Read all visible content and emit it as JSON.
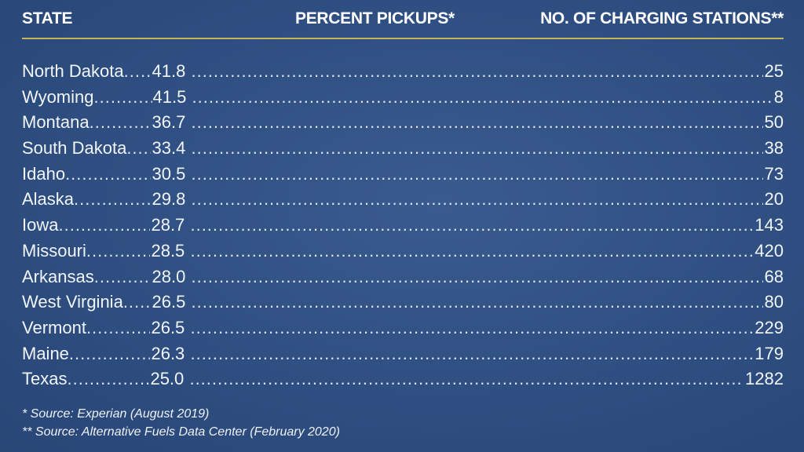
{
  "header": {
    "state": "STATE",
    "percent_pickups": "PERCENT PICKUPS*",
    "charging_stations": "NO. OF CHARGING STATIONS**"
  },
  "rows": [
    {
      "state": "North Dakota",
      "percent": "41.8",
      "stations": "25"
    },
    {
      "state": "Wyoming",
      "percent": "41.5",
      "stations": "8"
    },
    {
      "state": "Montana",
      "percent": "36.7",
      "stations": "50"
    },
    {
      "state": "South Dakota",
      "percent": "33.4",
      "stations": "38"
    },
    {
      "state": "Idaho",
      "percent": "30.5",
      "stations": "73"
    },
    {
      "state": "Alaska",
      "percent": "29.8",
      "stations": "20"
    },
    {
      "state": "Iowa",
      "percent": "28.7",
      "stations": "143"
    },
    {
      "state": "Missouri",
      "percent": "28.5",
      "stations": "420"
    },
    {
      "state": "Arkansas",
      "percent": "28.0",
      "stations": "68"
    },
    {
      "state": "West Virginia",
      "percent": "26.5",
      "stations": "80"
    },
    {
      "state": "Vermont",
      "percent": "26.5",
      "stations": "229"
    },
    {
      "state": "Maine",
      "percent": "26.3",
      "stations": "179"
    },
    {
      "state": "Texas",
      "percent": "25.0",
      "stations": "1282"
    }
  ],
  "footnotes": {
    "note1": "*  Source: Experian (August 2019)",
    "note2": "** Source: Alternative Fuels Data Center (February 2020)"
  },
  "colors": {
    "background": "#2f4e80",
    "rule": "#c9b35a",
    "text": "#ffffff"
  }
}
